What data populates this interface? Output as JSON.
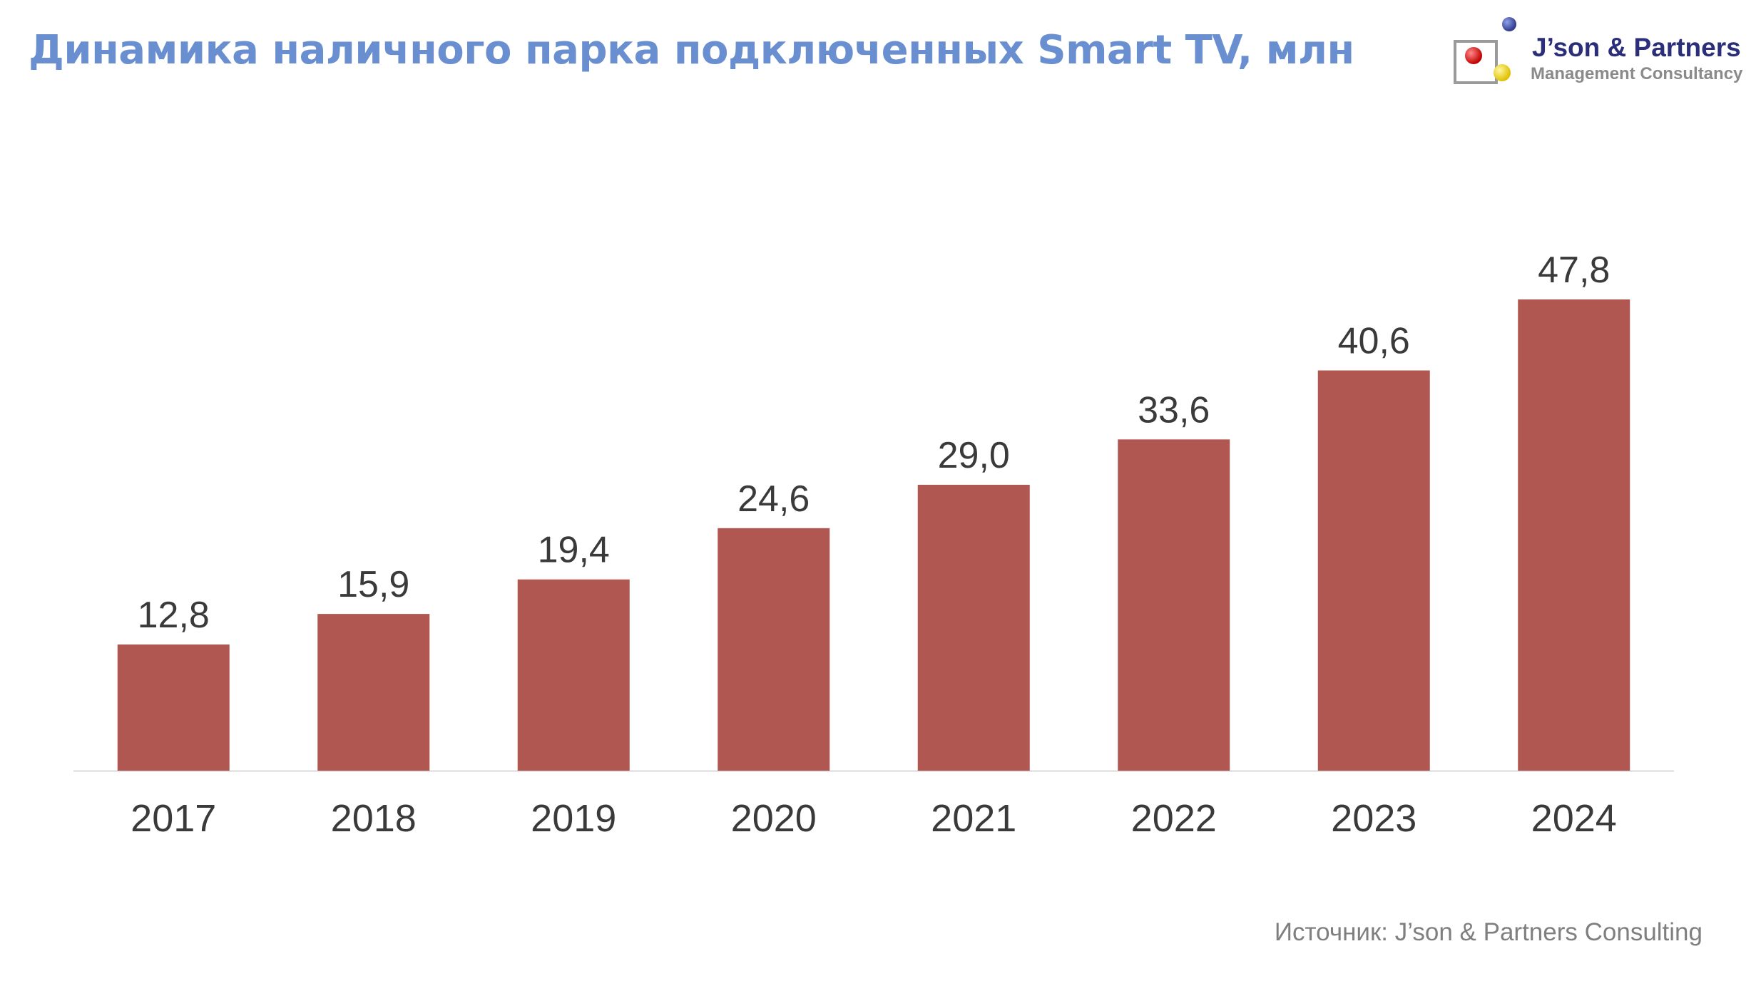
{
  "title": "Динамика наличного парка подключенных Smart TV, млн",
  "logo": {
    "name": "J’son & Partners",
    "tagline": "Management Consultancy"
  },
  "source": "Источник: J’son & Partners Consulting",
  "colors": {
    "title": "#6a8fd0",
    "bar": "#b05752",
    "text": "#3a3a3a",
    "axis": "#d9d9d9",
    "source": "#7f7f7f"
  },
  "chart_data": {
    "type": "bar",
    "categories": [
      "2017",
      "2018",
      "2019",
      "2020",
      "2021",
      "2022",
      "2023",
      "2024"
    ],
    "values": [
      12.8,
      15.9,
      19.4,
      24.6,
      29.0,
      33.6,
      40.6,
      47.8
    ],
    "data_labels": [
      "12,8",
      "15,9",
      "19,4",
      "24,6",
      "29,0",
      "33,6",
      "40,6",
      "47,8"
    ],
    "title": "",
    "xlabel": "",
    "ylabel": "",
    "ylim": [
      0,
      47.8
    ],
    "grid": false,
    "legend": "none"
  }
}
